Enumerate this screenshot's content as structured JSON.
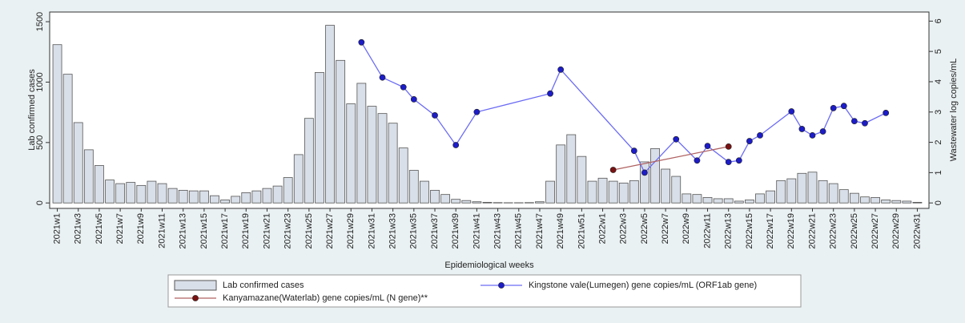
{
  "chart_data": {
    "type": "bar",
    "y_label": "Lab confirmed cases",
    "y2_label": "Wastewater log copies/mL",
    "x_label": "Epidemiological weeks",
    "categories": [
      "2021w1",
      null,
      "2021w3",
      null,
      "2021w5",
      null,
      "2021w7",
      null,
      "2021w9",
      null,
      "2021w11",
      null,
      "2021w13",
      null,
      "2021w15",
      null,
      "2021w17",
      null,
      "2021w19",
      null,
      "2021w21",
      null,
      "2021w23",
      null,
      "2021w25",
      null,
      "2021w27",
      null,
      "2021w29",
      null,
      "2021w31",
      null,
      "2021w33",
      null,
      "2021w35",
      null,
      "2021w37",
      null,
      "2021w39",
      null,
      "2021w41",
      null,
      "2021w43",
      null,
      "2021w45",
      null,
      "2021w47",
      null,
      "2021w49",
      null,
      "2021w51",
      null,
      "2022w1",
      null,
      "2022w3",
      null,
      "2022w5",
      null,
      "2022w7",
      null,
      "2022w9",
      null,
      "2022w11",
      null,
      "2022w13",
      null,
      "2022w15",
      null,
      "2022w17",
      null,
      "2022w19",
      null,
      "2022w21",
      null,
      "2022w23",
      null,
      "2022w25",
      null,
      "2022w27",
      null,
      "2022w29",
      null,
      "2022w31"
    ],
    "series": [
      {
        "name": "Lab confirmed cases",
        "type": "bar",
        "color": "#d9dfe8",
        "stroke": "#555555",
        "values": [
          1310,
          1065,
          665,
          440,
          310,
          190,
          160,
          170,
          145,
          180,
          160,
          120,
          105,
          100,
          100,
          60,
          25,
          55,
          85,
          100,
          120,
          140,
          210,
          400,
          700,
          1080,
          1470,
          1180,
          820,
          990,
          800,
          740,
          660,
          455,
          270,
          180,
          105,
          70,
          30,
          20,
          10,
          5,
          3,
          2,
          2,
          3,
          10,
          180,
          480,
          565,
          385,
          180,
          205,
          180,
          165,
          185,
          340,
          450,
          280,
          220,
          75,
          70,
          45,
          35,
          35,
          15,
          25,
          75,
          100,
          185,
          200,
          245,
          255,
          185,
          160,
          110,
          80,
          50,
          45,
          25,
          20,
          15,
          5
        ]
      },
      {
        "name": "Kingstone vale(Lumegen) gene copies/mL (ORF1ab gene)",
        "type": "line",
        "axis": "y2",
        "color": "#6b6bf5",
        "marker_color": "#1c1cc8",
        "x": [
          "2021w30",
          "2021w32",
          "2021w34",
          "2021w35",
          "2021w37",
          "2021w39",
          "2021w41",
          "2021w48",
          "2021w49",
          "2022w4",
          "2022w5",
          "2022w8",
          "2022w10",
          "2022w11",
          "2022w13",
          "2022w14",
          "2022w15",
          "2022w16",
          "2022w19",
          "2022w20",
          "2022w21",
          "2022w22",
          "2022w23",
          "2022w24",
          "2022w25",
          "2022w26",
          "2022w28"
        ],
        "values": [
          5.3,
          4.14,
          3.82,
          3.42,
          2.89,
          1.91,
          3.0,
          3.61,
          4.4,
          1.72,
          1.0,
          2.1,
          1.4,
          1.88,
          1.35,
          1.4,
          2.04,
          2.23,
          3.02,
          2.44,
          2.23,
          2.36,
          3.13,
          3.2,
          2.7,
          2.63,
          2.97
        ]
      },
      {
        "name": "Kanyamazane(Waterlab) gene copies/mL (N gene)**",
        "type": "line",
        "axis": "y2",
        "color": "#b06262",
        "marker_color": "#7a1212",
        "x": [
          "2022w2",
          "2022w13"
        ],
        "values": [
          1.09,
          1.86
        ]
      }
    ],
    "ylim": [
      -45,
      1580
    ],
    "yticks": [
      0,
      500,
      1000,
      1500
    ],
    "y2lim": [
      -0.18,
      6.3
    ],
    "y2ticks": [
      0,
      1,
      2,
      3,
      4,
      5,
      6
    ]
  }
}
